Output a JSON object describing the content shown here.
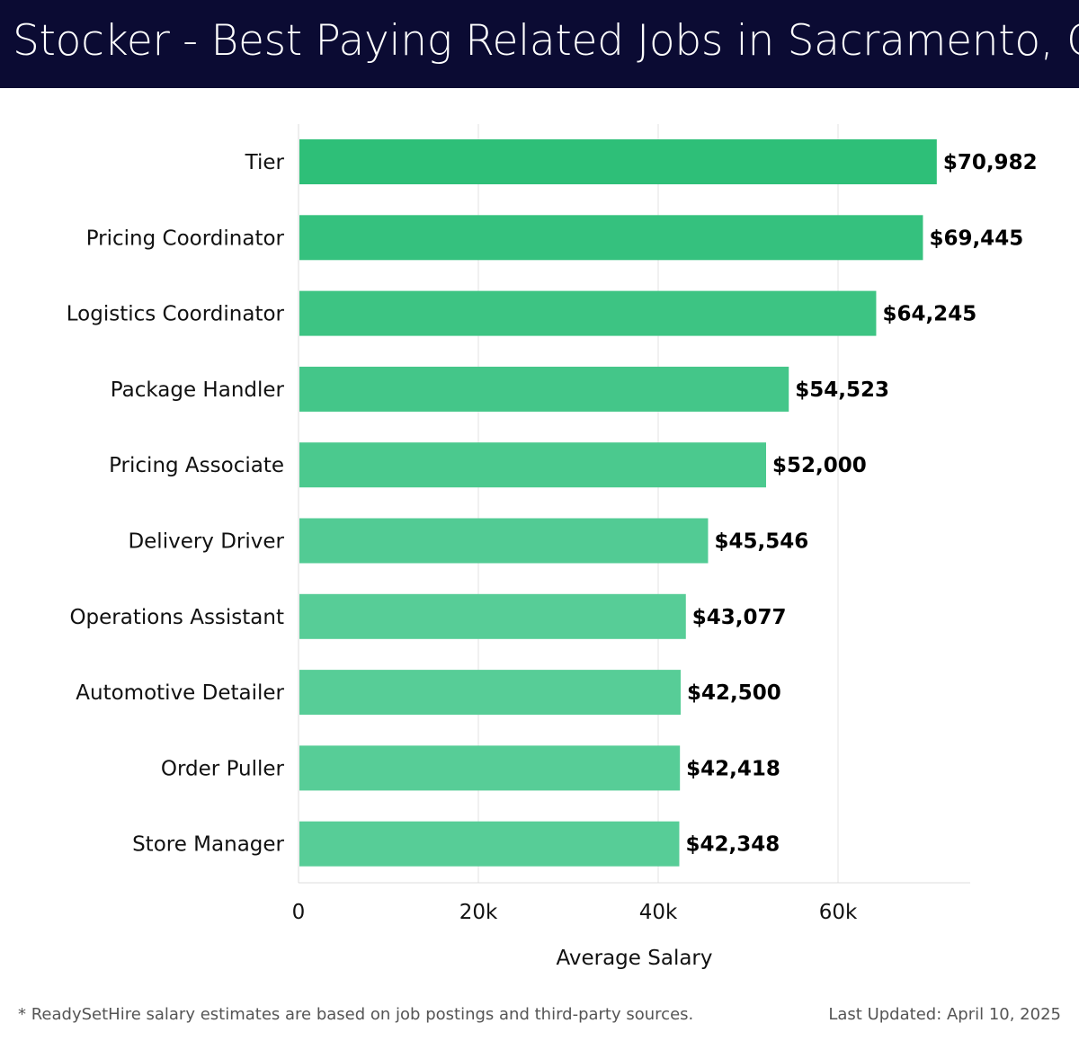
{
  "header": {
    "title": "Stocker - Best Paying Related Jobs in Sacramento, CA"
  },
  "footer": {
    "note": "* ReadySetHire salary estimates are based on job postings and third-party sources.",
    "updated": "Last Updated: April 10, 2025"
  },
  "colors": {
    "title_bg": "#0b0b33",
    "bar_dark": "#2ebf78",
    "bar_light": "#57cd97"
  },
  "chart_data": {
    "type": "bar",
    "orientation": "horizontal",
    "categories": [
      "Tier",
      "Pricing Coordinator",
      "Logistics Coordinator",
      "Package Handler",
      "Pricing Associate",
      "Delivery Driver",
      "Operations Assistant",
      "Automotive Detailer",
      "Order Puller",
      "Store Manager"
    ],
    "values": [
      70982,
      69445,
      64245,
      54523,
      52000,
      45546,
      43077,
      42500,
      42418,
      42348
    ],
    "value_labels": [
      "$70,982",
      "$69,445",
      "$64,245",
      "$54,523",
      "$52,000",
      "$45,546",
      "$43,077",
      "$42,500",
      "$42,418",
      "$42,348"
    ],
    "xlabel": "Average Salary",
    "ylabel": "",
    "xlim": [
      0,
      74700
    ],
    "xticks": [
      0,
      20000,
      40000,
      60000
    ],
    "xtick_labels": [
      "0",
      "20k",
      "40k",
      "60k"
    ],
    "grid": "vertical"
  }
}
